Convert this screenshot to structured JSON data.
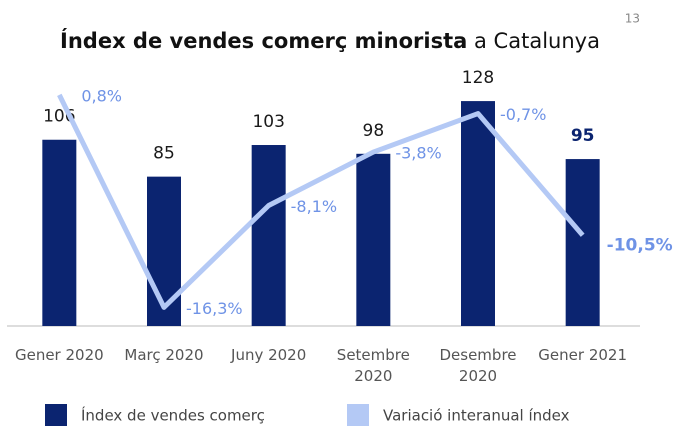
{
  "page_number": 13,
  "chart_data": {
    "type": "bar_line",
    "title": "Índex de vendes comerç minorista",
    "subtitle": "a Catalunya",
    "categories": [
      "Gener 2020",
      "Març 2020",
      "Juny 2020",
      "Setembre 2020",
      "Desembre 2020",
      "Gener 2021"
    ],
    "ylim": [
      0,
      140
    ],
    "y2lim": [
      -17.8,
      2
    ],
    "series": [
      {
        "name": "Índex de vendes comerç",
        "color": "#0b2470",
        "values": [
          106,
          85,
          103,
          98,
          128,
          95
        ]
      },
      {
        "name": "Variació interanual índex",
        "color": "#b4c9f5",
        "label_color": "#6f93e6",
        "axis": "y2",
        "values": [
          0.8,
          -16.3,
          -8.1,
          -3.8,
          -0.7,
          -10.5
        ],
        "value_labels": [
          "0,8%",
          "-16,3%",
          "-8,1%",
          "-3,8%",
          "-0,7%",
          "-10,5%"
        ]
      }
    ],
    "legend": "bottom"
  }
}
